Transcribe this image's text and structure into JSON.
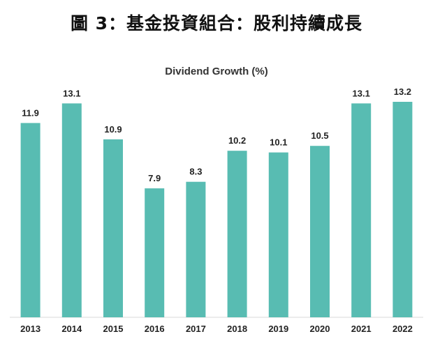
{
  "page": {
    "title": "圖 3：基金投資組合：股利持續成長"
  },
  "chart_data": {
    "type": "bar",
    "title": "Dividend Growth (%)",
    "xlabel": "",
    "ylabel": "",
    "categories": [
      "2013",
      "2014",
      "2015",
      "2016",
      "2017",
      "2018",
      "2019",
      "2020",
      "2021",
      "2022"
    ],
    "values": [
      11.9,
      13.1,
      10.9,
      7.9,
      8.3,
      10.2,
      10.1,
      10.5,
      13.1,
      13.2
    ],
    "data_labels": [
      "11.9",
      "13.1",
      "10.9",
      "7.9",
      "8.3",
      "10.2",
      "10.1",
      "10.5",
      "13.1",
      "13.2"
    ],
    "ylim": [
      0,
      13.2
    ],
    "grid": false,
    "legend": "none",
    "colors": {
      "bar": "#58BCB2",
      "baseline": "#D9D9D9"
    }
  }
}
